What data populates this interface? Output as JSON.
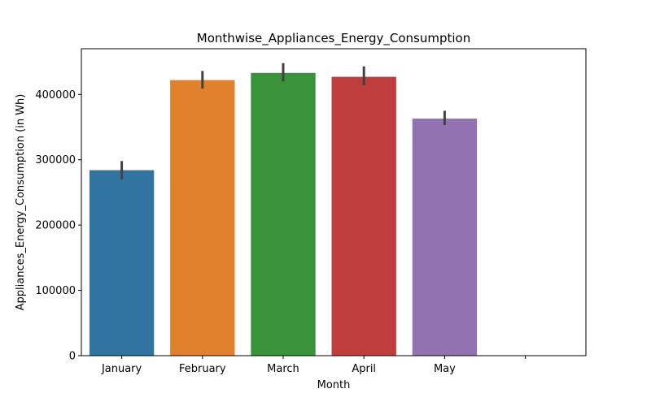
{
  "chart_data": {
    "type": "bar",
    "title": "Monthwise_Appliances_Energy_Consumption",
    "xlabel": "Month",
    "ylabel": "Appliances_Energy_Consumption (in Wh)",
    "categories": [
      "January",
      "February",
      "March",
      "April",
      "May"
    ],
    "values": [
      284000,
      422000,
      433000,
      427000,
      363000
    ],
    "error_low": [
      270000,
      409000,
      420000,
      414000,
      353000
    ],
    "error_high": [
      298000,
      436000,
      448000,
      443000,
      375000
    ],
    "colors": [
      "#3274a1",
      "#e1812c",
      "#3a923a",
      "#c03d3e",
      "#9372b2"
    ],
    "error_color": "#424242",
    "ylim": [
      0,
      470000
    ],
    "yticks": [
      0,
      100000,
      200000,
      300000,
      400000
    ],
    "ytick_labels": [
      "0",
      "100000",
      "200000",
      "300000",
      "400000"
    ],
    "extra_xtick_slots": 1,
    "grid": false,
    "legend": "none"
  }
}
